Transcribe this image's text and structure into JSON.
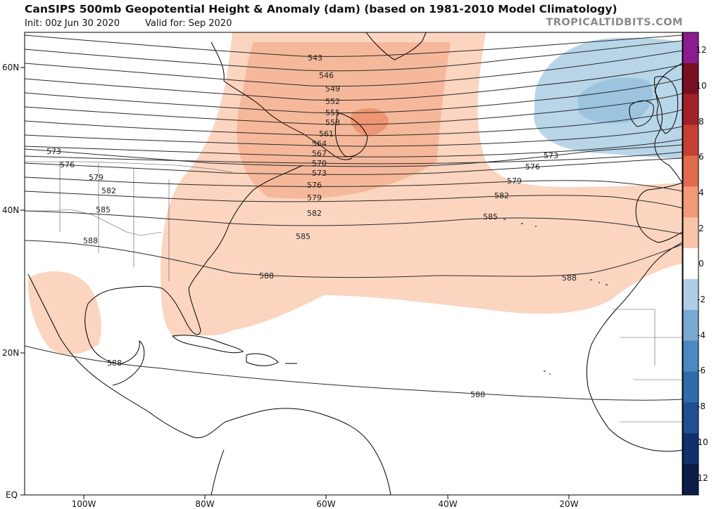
{
  "header": {
    "title": "CanSIPS 500mb Geopotential Height & Anomaly (dam) (based on 1981-2010 Model Climatology)",
    "init": "Init: 00z Jun 30 2020",
    "valid": "Valid for: Sep 2020",
    "brand": "TROPICALTIDBITS.COM"
  },
  "axes": {
    "lat_labels": [
      "60N",
      "40N",
      "20N",
      "EQ"
    ],
    "lon_labels": [
      "100W",
      "80W",
      "60W",
      "40W",
      "20W"
    ]
  },
  "contours": {
    "units": "dam",
    "labels": [
      "543",
      "546",
      "549",
      "552",
      "555",
      "558",
      "561",
      "564",
      "567",
      "570",
      "573",
      "576",
      "579",
      "582",
      "585",
      "588"
    ]
  },
  "colorbar": {
    "tick_labels": [
      "12",
      "10",
      "8",
      "6",
      "4",
      "2",
      "0",
      "-2",
      "-4",
      "-6",
      "-8",
      "-10",
      "-12"
    ],
    "colors": [
      "#0d1d4a",
      "#13306e",
      "#1f4f93",
      "#2f6cad",
      "#4b89c2",
      "#7aa9d3",
      "#afcde6",
      "#ffffff",
      "#f9c4aa",
      "#f09a78",
      "#e26a4e",
      "#c63f33",
      "#a0212a",
      "#7a0f22",
      "#8d1b8f"
    ]
  },
  "anomaly_colors": {
    "positive_light": "#fbd5c0",
    "positive_mid": "#f6b89a",
    "positive_strong": "#ee9673",
    "negative_light": "#b9d6e9",
    "negative_mid": "#9cc4df"
  }
}
